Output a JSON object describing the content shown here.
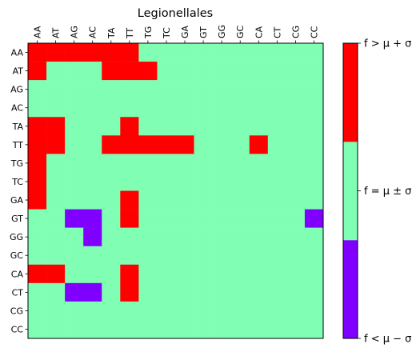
{
  "chart_data": {
    "type": "heatmap",
    "title": "Legionellales",
    "x_categories": [
      "AA",
      "AT",
      "AG",
      "AC",
      "TA",
      "TT",
      "TG",
      "TC",
      "GA",
      "GT",
      "GG",
      "GC",
      "CA",
      "CT",
      "CG",
      "CC"
    ],
    "y_categories": [
      "AA",
      "AT",
      "AG",
      "AC",
      "TA",
      "TT",
      "TG",
      "TC",
      "GA",
      "GT",
      "GG",
      "GC",
      "CA",
      "CT",
      "CG",
      "CC"
    ],
    "values": [
      [
        1,
        1,
        1,
        1,
        1,
        1,
        0,
        0,
        0,
        0,
        0,
        0,
        0,
        0,
        0,
        0
      ],
      [
        1,
        0,
        0,
        0,
        1,
        1,
        1,
        0,
        0,
        0,
        0,
        0,
        0,
        0,
        0,
        0
      ],
      [
        0,
        0,
        0,
        0,
        0,
        0,
        0,
        0,
        0,
        0,
        0,
        0,
        0,
        0,
        0,
        0
      ],
      [
        0,
        0,
        0,
        0,
        0,
        0,
        0,
        0,
        0,
        0,
        0,
        0,
        0,
        0,
        0,
        0
      ],
      [
        1,
        1,
        0,
        0,
        0,
        1,
        0,
        0,
        0,
        0,
        0,
        0,
        0,
        0,
        0,
        0
      ],
      [
        1,
        1,
        0,
        0,
        1,
        1,
        1,
        1,
        1,
        0,
        0,
        0,
        1,
        0,
        0,
        0
      ],
      [
        1,
        0,
        0,
        0,
        0,
        0,
        0,
        0,
        0,
        0,
        0,
        0,
        0,
        0,
        0,
        0
      ],
      [
        1,
        0,
        0,
        0,
        0,
        0,
        0,
        0,
        0,
        0,
        0,
        0,
        0,
        0,
        0,
        0
      ],
      [
        1,
        0,
        0,
        0,
        0,
        1,
        0,
        0,
        0,
        0,
        0,
        0,
        0,
        0,
        0,
        0
      ],
      [
        0,
        0,
        -1,
        -1,
        0,
        1,
        0,
        0,
        0,
        0,
        0,
        0,
        0,
        0,
        0,
        -1
      ],
      [
        0,
        0,
        0,
        -1,
        0,
        0,
        0,
        0,
        0,
        0,
        0,
        0,
        0,
        0,
        0,
        0
      ],
      [
        0,
        0,
        0,
        0,
        0,
        0,
        0,
        0,
        0,
        0,
        0,
        0,
        0,
        0,
        0,
        0
      ],
      [
        1,
        1,
        0,
        0,
        0,
        1,
        0,
        0,
        0,
        0,
        0,
        0,
        0,
        0,
        0,
        0
      ],
      [
        0,
        0,
        -1,
        -1,
        0,
        1,
        0,
        0,
        0,
        0,
        0,
        0,
        0,
        0,
        0,
        0
      ],
      [
        0,
        0,
        0,
        0,
        0,
        0,
        0,
        0,
        0,
        0,
        0,
        0,
        0,
        0,
        0,
        0
      ],
      [
        0,
        0,
        0,
        0,
        0,
        0,
        0,
        0,
        0,
        0,
        0,
        0,
        0,
        0,
        0,
        0
      ]
    ],
    "value_levels": [
      -1,
      0,
      1
    ],
    "colors": {
      "low": "#8000ff",
      "mid": "#80ffb4",
      "high": "#ff0000"
    },
    "colorbar": {
      "labels": [
        "f < μ − σ",
        "f = μ ± σ",
        "f > μ + σ"
      ],
      "levels": [
        -1,
        0,
        1
      ]
    },
    "grid": false
  }
}
